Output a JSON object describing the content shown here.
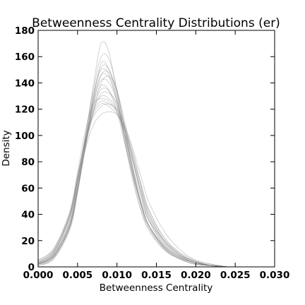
{
  "chart_data": {
    "type": "line",
    "title": "Betweenness Centrality Distributions (er)",
    "xlabel": "Betweenness Centrality",
    "ylabel": "Density",
    "xlim": [
      0.0,
      0.03
    ],
    "ylim": [
      0,
      180
    ],
    "xticks": [
      "0.000",
      "0.005",
      "0.010",
      "0.015",
      "0.020",
      "0.025",
      "0.030"
    ],
    "yticks": [
      "0",
      "20",
      "40",
      "60",
      "80",
      "100",
      "120",
      "140",
      "160",
      "180"
    ],
    "grid": false,
    "legend": "none",
    "line_color": "#808080",
    "series": [
      {
        "x": [
          0.0,
          0.002,
          0.004,
          0.005,
          0.006,
          0.007,
          0.008,
          0.009,
          0.01,
          0.011,
          0.012,
          0.013,
          0.014,
          0.016,
          0.018,
          0.02,
          0.022,
          0.024
        ],
        "y": [
          2,
          7,
          32,
          62,
          98,
          138,
          170,
          163,
          132,
          98,
          68,
          44,
          28,
          13,
          6,
          2,
          1,
          0
        ]
      },
      {
        "x": [
          0.0,
          0.002,
          0.004,
          0.005,
          0.006,
          0.007,
          0.008,
          0.009,
          0.01,
          0.011,
          0.012,
          0.013,
          0.014,
          0.016,
          0.018,
          0.02,
          0.022,
          0.024
        ],
        "y": [
          3,
          8,
          30,
          58,
          92,
          128,
          155,
          150,
          128,
          96,
          70,
          48,
          32,
          16,
          8,
          3,
          1,
          0
        ]
      },
      {
        "x": [
          0.0,
          0.002,
          0.004,
          0.005,
          0.006,
          0.007,
          0.008,
          0.009,
          0.01,
          0.011,
          0.012,
          0.013,
          0.014,
          0.016,
          0.018,
          0.02,
          0.022,
          0.024
        ],
        "y": [
          2,
          10,
          36,
          66,
          100,
          135,
          160,
          158,
          135,
          104,
          74,
          50,
          32,
          15,
          7,
          3,
          1,
          0
        ]
      },
      {
        "x": [
          0.0,
          0.002,
          0.004,
          0.005,
          0.006,
          0.007,
          0.008,
          0.009,
          0.01,
          0.011,
          0.012,
          0.013,
          0.014,
          0.016,
          0.018,
          0.02,
          0.022,
          0.024
        ],
        "y": [
          4,
          12,
          38,
          68,
          98,
          122,
          135,
          134,
          122,
          100,
          76,
          54,
          36,
          17,
          8,
          3,
          1,
          0
        ]
      },
      {
        "x": [
          0.0,
          0.002,
          0.004,
          0.005,
          0.006,
          0.007,
          0.008,
          0.009,
          0.01,
          0.011,
          0.012,
          0.013,
          0.014,
          0.016,
          0.018,
          0.02,
          0.022,
          0.024
        ],
        "y": [
          3,
          11,
          40,
          72,
          104,
          124,
          128,
          126,
          118,
          100,
          80,
          58,
          40,
          20,
          9,
          4,
          1,
          0
        ]
      },
      {
        "x": [
          0.0,
          0.002,
          0.004,
          0.005,
          0.006,
          0.007,
          0.008,
          0.009,
          0.01,
          0.011,
          0.012,
          0.013,
          0.014,
          0.016,
          0.018,
          0.02,
          0.022,
          0.024
        ],
        "y": [
          2,
          8,
          30,
          58,
          90,
          118,
          140,
          145,
          134,
          110,
          82,
          56,
          36,
          16,
          7,
          3,
          1,
          0
        ]
      },
      {
        "x": [
          0.0,
          0.002,
          0.004,
          0.005,
          0.006,
          0.007,
          0.008,
          0.009,
          0.01,
          0.011,
          0.012,
          0.013,
          0.014,
          0.016,
          0.018,
          0.02,
          0.022,
          0.024
        ],
        "y": [
          5,
          14,
          42,
          70,
          96,
          114,
          122,
          124,
          120,
          108,
          88,
          64,
          44,
          22,
          10,
          4,
          1,
          0
        ]
      },
      {
        "x": [
          0.0,
          0.002,
          0.004,
          0.005,
          0.006,
          0.007,
          0.008,
          0.009,
          0.01,
          0.011,
          0.012,
          0.013,
          0.014,
          0.016,
          0.018,
          0.02,
          0.022,
          0.024
        ],
        "y": [
          2,
          9,
          34,
          64,
          100,
          132,
          150,
          146,
          124,
          94,
          66,
          44,
          30,
          15,
          7,
          3,
          1,
          0
        ]
      },
      {
        "x": [
          0.0,
          0.002,
          0.004,
          0.005,
          0.006,
          0.007,
          0.008,
          0.009,
          0.01,
          0.011,
          0.012,
          0.013,
          0.014,
          0.016,
          0.018,
          0.02,
          0.022,
          0.024
        ],
        "y": [
          3,
          10,
          34,
          62,
          92,
          118,
          132,
          132,
          124,
          106,
          82,
          58,
          38,
          18,
          8,
          3,
          1,
          0
        ]
      },
      {
        "x": [
          0.0,
          0.002,
          0.004,
          0.005,
          0.006,
          0.007,
          0.008,
          0.009,
          0.01,
          0.011,
          0.012,
          0.013,
          0.014,
          0.016,
          0.018,
          0.02,
          0.022,
          0.024
        ],
        "y": [
          1,
          6,
          28,
          56,
          94,
          130,
          152,
          150,
          132,
          104,
          74,
          48,
          30,
          13,
          6,
          2,
          1,
          0
        ]
      },
      {
        "x": [
          0.0,
          0.002,
          0.004,
          0.005,
          0.006,
          0.007,
          0.008,
          0.009,
          0.01,
          0.011,
          0.012,
          0.013,
          0.014,
          0.016,
          0.018,
          0.02,
          0.022,
          0.024
        ],
        "y": [
          4,
          13,
          40,
          68,
          96,
          116,
          124,
          122,
          116,
          104,
          86,
          64,
          44,
          22,
          11,
          5,
          2,
          0
        ]
      },
      {
        "x": [
          0.0,
          0.002,
          0.004,
          0.005,
          0.006,
          0.007,
          0.008,
          0.009,
          0.01,
          0.011,
          0.012,
          0.013,
          0.014,
          0.016,
          0.018,
          0.02,
          0.022,
          0.024
        ],
        "y": [
          2,
          9,
          32,
          60,
          94,
          128,
          146,
          144,
          128,
          100,
          72,
          48,
          32,
          15,
          7,
          3,
          1,
          0
        ]
      },
      {
        "x": [
          0.0,
          0.002,
          0.004,
          0.005,
          0.006,
          0.007,
          0.008,
          0.009,
          0.01,
          0.011,
          0.012,
          0.013,
          0.014,
          0.016,
          0.018,
          0.02,
          0.022,
          0.024
        ],
        "y": [
          3,
          11,
          38,
          66,
          96,
          120,
          130,
          128,
          120,
          104,
          82,
          60,
          40,
          19,
          9,
          4,
          1,
          0
        ]
      },
      {
        "x": [
          0.0,
          0.002,
          0.004,
          0.005,
          0.006,
          0.007,
          0.008,
          0.009,
          0.01,
          0.011,
          0.012,
          0.013,
          0.014,
          0.016,
          0.018,
          0.02,
          0.022,
          0.024
        ],
        "y": [
          1,
          7,
          30,
          58,
          94,
          126,
          142,
          140,
          126,
          100,
          72,
          48,
          32,
          14,
          6,
          2,
          1,
          0
        ]
      },
      {
        "x": [
          0.0,
          0.002,
          0.004,
          0.005,
          0.006,
          0.007,
          0.008,
          0.009,
          0.01,
          0.011,
          0.012,
          0.013,
          0.014,
          0.016,
          0.018,
          0.02,
          0.022,
          0.024
        ],
        "y": [
          5,
          14,
          40,
          66,
          90,
          108,
          116,
          118,
          116,
          106,
          90,
          70,
          50,
          27,
          13,
          5,
          2,
          0
        ]
      },
      {
        "x": [
          0.0,
          0.002,
          0.004,
          0.005,
          0.006,
          0.007,
          0.008,
          0.009,
          0.01,
          0.011,
          0.012,
          0.013,
          0.014,
          0.016,
          0.018,
          0.02,
          0.022,
          0.024
        ],
        "y": [
          2,
          8,
          30,
          58,
          92,
          124,
          146,
          148,
          134,
          106,
          76,
          50,
          32,
          14,
          6,
          2,
          1,
          0
        ]
      },
      {
        "x": [
          0.0,
          0.002,
          0.004,
          0.005,
          0.006,
          0.007,
          0.008,
          0.009,
          0.01,
          0.011,
          0.012,
          0.013,
          0.014,
          0.016,
          0.018,
          0.02,
          0.022,
          0.024
        ],
        "y": [
          3,
          12,
          38,
          66,
          96,
          118,
          126,
          124,
          118,
          104,
          84,
          62,
          42,
          20,
          9,
          4,
          1,
          0
        ]
      },
      {
        "x": [
          0.0,
          0.002,
          0.004,
          0.005,
          0.006,
          0.007,
          0.008,
          0.009,
          0.01,
          0.011,
          0.012,
          0.013,
          0.014,
          0.016,
          0.018,
          0.02,
          0.022,
          0.024
        ],
        "y": [
          2,
          9,
          32,
          60,
          94,
          124,
          138,
          134,
          118,
          94,
          70,
          50,
          36,
          20,
          10,
          4,
          1,
          0
        ]
      }
    ]
  }
}
